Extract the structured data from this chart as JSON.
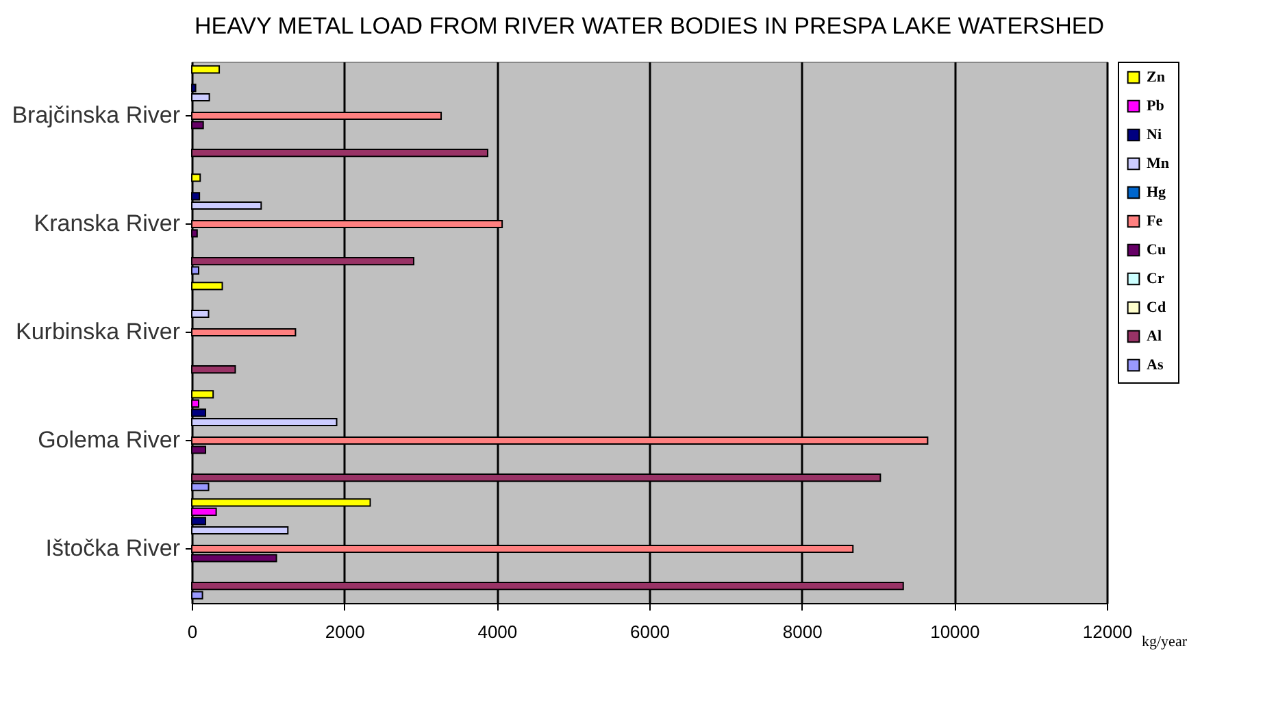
{
  "chart_data": {
    "type": "bar",
    "orientation": "horizontal",
    "title": "HEAVY METAL LOAD FROM RIVER WATER BODIES IN PRESPA LAKE WATERSHED",
    "xlabel": "kg/year",
    "categories": [
      "Brajčinska River",
      "Kranska River",
      "Kurbinska River",
      "Golema River",
      "Ištočka River"
    ],
    "series": [
      {
        "name": "Zn",
        "color": "#ffff00",
        "values": [
          360,
          110,
          400,
          280,
          2340
        ]
      },
      {
        "name": "Pb",
        "color": "#ff00ff",
        "values": [
          null,
          null,
          null,
          90,
          320
        ]
      },
      {
        "name": "Ni",
        "color": "#000080",
        "values": [
          50,
          100,
          null,
          180,
          180
        ]
      },
      {
        "name": "Mn",
        "color": "#ccccff",
        "values": [
          230,
          910,
          220,
          1900,
          1260
        ]
      },
      {
        "name": "Hg",
        "color": "#0066cc",
        "values": [
          null,
          null,
          null,
          null,
          null
        ]
      },
      {
        "name": "Fe",
        "color": "#ff8080",
        "values": [
          3270,
          4070,
          1360,
          9650,
          8670
        ]
      },
      {
        "name": "Cu",
        "color": "#660066",
        "values": [
          150,
          70,
          null,
          180,
          1110
        ]
      },
      {
        "name": "Cr",
        "color": "#ccffff",
        "values": [
          null,
          null,
          null,
          null,
          null
        ]
      },
      {
        "name": "Cd",
        "color": "#ffffcc",
        "values": [
          null,
          null,
          null,
          null,
          null
        ]
      },
      {
        "name": "Al",
        "color": "#993366",
        "values": [
          3880,
          2910,
          570,
          9030,
          9330
        ]
      },
      {
        "name": "As",
        "color": "#9999ff",
        "values": [
          null,
          90,
          null,
          220,
          140
        ]
      }
    ],
    "xlim": [
      0,
      12000
    ],
    "xticks": [
      0,
      2000,
      4000,
      6000,
      8000,
      10000,
      12000
    ],
    "grid": "x",
    "legend": "right"
  }
}
